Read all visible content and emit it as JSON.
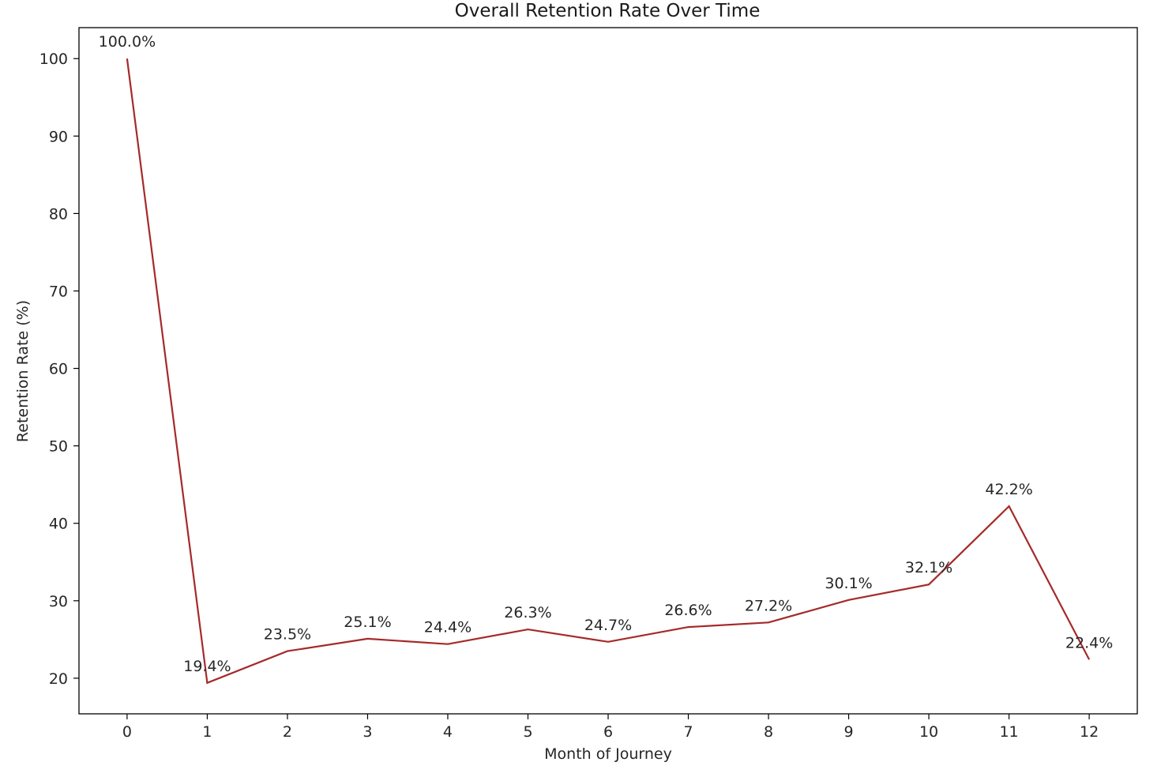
{
  "chart_data": {
    "type": "line",
    "title": "Overall Retention Rate Over Time",
    "xlabel": "Month of Journey",
    "ylabel": "Retention Rate (%)",
    "x": [
      0,
      1,
      2,
      3,
      4,
      5,
      6,
      7,
      8,
      9,
      10,
      11,
      12
    ],
    "x_tick_labels": [
      "0",
      "1",
      "2",
      "3",
      "4",
      "5",
      "6",
      "7",
      "8",
      "9",
      "10",
      "11",
      "12"
    ],
    "y_ticks": [
      20,
      30,
      40,
      50,
      60,
      70,
      80,
      90,
      100
    ],
    "y_tick_labels": [
      "20",
      "30",
      "40",
      "50",
      "60",
      "70",
      "80",
      "90",
      "100"
    ],
    "xlim": [
      -0.6,
      12.6
    ],
    "ylim": [
      15.4,
      104.0
    ],
    "grid": false,
    "series": [
      {
        "values": [
          100.0,
          19.4,
          23.5,
          25.1,
          24.4,
          26.3,
          24.7,
          26.6,
          27.2,
          30.1,
          32.1,
          42.2,
          22.4
        ],
        "color": "#a52a2a"
      }
    ],
    "data_labels": [
      "100.0%",
      "19.4%",
      "23.5%",
      "25.1%",
      "24.4%",
      "26.3%",
      "24.7%",
      "26.6%",
      "27.2%",
      "30.1%",
      "32.1%",
      "42.2%",
      "22.4%"
    ]
  }
}
